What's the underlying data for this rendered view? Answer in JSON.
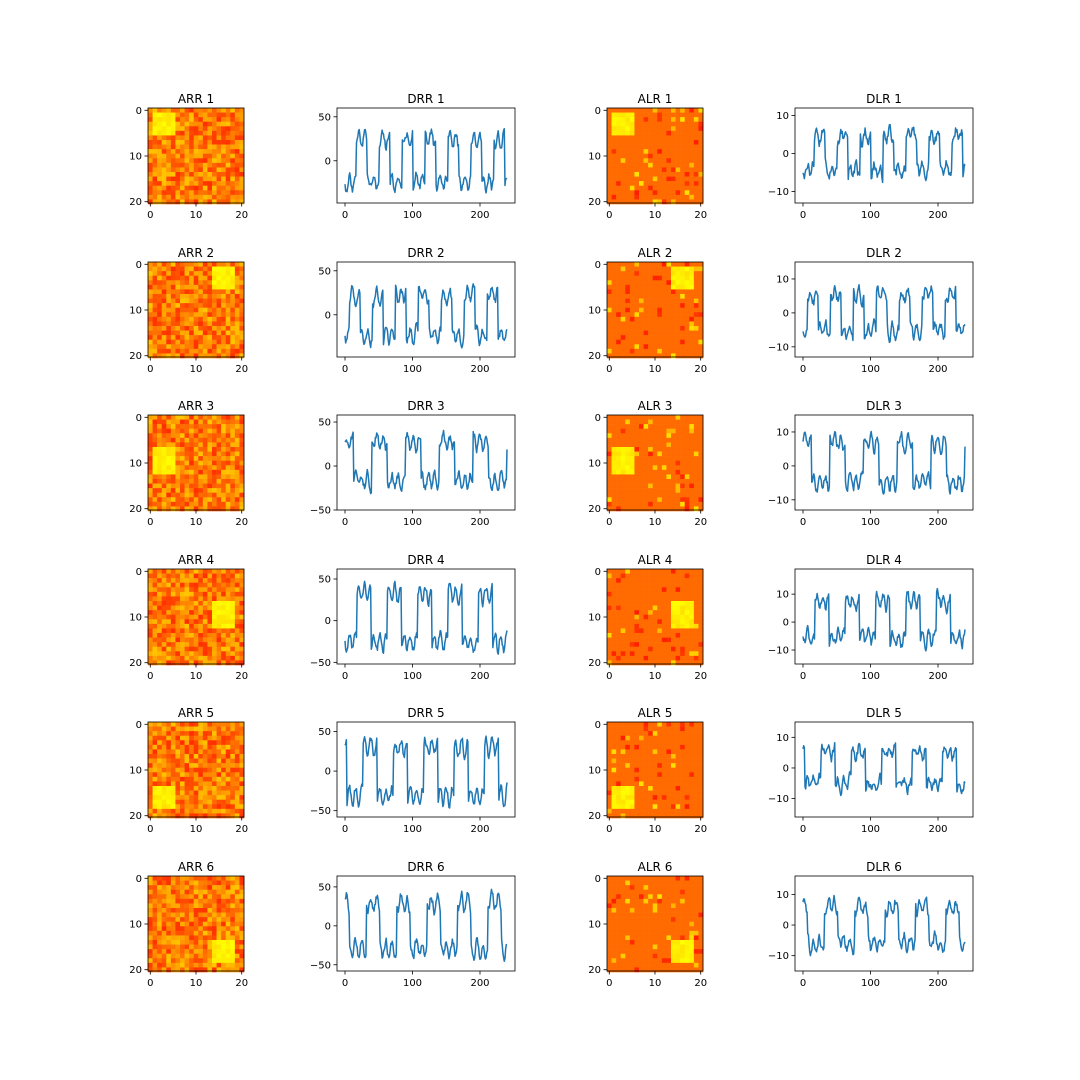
{
  "chart_data": [
    {
      "type": "heatmap",
      "title": "ARR 1",
      "cmap": "autumn",
      "grid_size": 21,
      "xlim": [
        0,
        20
      ],
      "ylim": [
        20,
        0
      ],
      "xticks": [
        "0",
        "10",
        "20"
      ],
      "yticks": [
        "0",
        "10",
        "20"
      ],
      "bright_block": {
        "rows": [
          1,
          5
        ],
        "cols": [
          1,
          5
        ]
      }
    },
    {
      "type": "line",
      "title": "DRR 1",
      "color": "#1f77b4",
      "xlim": [
        0,
        240
      ],
      "xticks": [
        "0",
        "100",
        "200"
      ],
      "yticks": [
        {
          "value": 50,
          "label": "50"
        },
        {
          "value": 0,
          "label": "0"
        }
      ],
      "ylim": [
        -48,
        60
      ],
      "period": 34,
      "amplitude": 32,
      "offset": 0,
      "noise": 9,
      "phase": 0.5
    },
    {
      "type": "heatmap",
      "title": "ALR 1",
      "cmap": "autumn",
      "grid_size": 21,
      "xlim": [
        0,
        20
      ],
      "ylim": [
        20,
        0
      ],
      "xticks": [
        "0",
        "10",
        "20"
      ],
      "yticks": [
        "0",
        "10",
        "20"
      ],
      "bright_block": {
        "rows": [
          1,
          5
        ],
        "cols": [
          1,
          5
        ]
      }
    },
    {
      "type": "line",
      "title": "DLR 1",
      "color": "#1f77b4",
      "xlim": [
        0,
        240
      ],
      "xticks": [
        "0",
        "100",
        "200"
      ],
      "yticks": [
        {
          "value": 10,
          "label": "10"
        },
        {
          "value": 0,
          "label": "0"
        },
        {
          "value": -10,
          "label": "−10"
        }
      ],
      "ylim": [
        -13,
        12
      ],
      "period": 34,
      "amplitude": 6,
      "offset": 0,
      "noise": 2.5,
      "phase": 0.5
    },
    {
      "type": "heatmap",
      "title": "ARR 2",
      "cmap": "autumn",
      "grid_size": 21,
      "xlim": [
        0,
        20
      ],
      "ylim": [
        20,
        0
      ],
      "xticks": [
        "0",
        "10",
        "20"
      ],
      "yticks": [
        "0",
        "10",
        "20"
      ],
      "bright_block": {
        "rows": [
          1,
          5
        ],
        "cols": [
          14,
          18
        ]
      }
    },
    {
      "type": "line",
      "title": "DRR 2",
      "color": "#1f77b4",
      "xlim": [
        0,
        240
      ],
      "xticks": [
        "0",
        "100",
        "200"
      ],
      "yticks": [
        {
          "value": 50,
          "label": "50"
        },
        {
          "value": 0,
          "label": "0"
        }
      ],
      "ylim": [
        -48,
        60
      ],
      "period": 34,
      "amplitude": 30,
      "offset": 0,
      "noise": 9,
      "phase": 2.8
    },
    {
      "type": "heatmap",
      "title": "ALR 2",
      "cmap": "autumn",
      "grid_size": 21,
      "xlim": [
        0,
        20
      ],
      "ylim": [
        20,
        0
      ],
      "xticks": [
        "0",
        "10",
        "20"
      ],
      "yticks": [
        "0",
        "10",
        "20"
      ],
      "bright_block": {
        "rows": [
          1,
          5
        ],
        "cols": [
          14,
          18
        ]
      }
    },
    {
      "type": "line",
      "title": "DLR 2",
      "color": "#1f77b4",
      "xlim": [
        0,
        240
      ],
      "xticks": [
        "0",
        "100",
        "200"
      ],
      "yticks": [
        {
          "value": 10,
          "label": "10"
        },
        {
          "value": 0,
          "label": "0"
        },
        {
          "value": -10,
          "label": "−10"
        }
      ],
      "ylim": [
        -13,
        15
      ],
      "period": 34,
      "amplitude": 7,
      "offset": 0,
      "noise": 2.5,
      "phase": 2.8
    },
    {
      "type": "heatmap",
      "title": "ARR 3",
      "cmap": "autumn",
      "grid_size": 21,
      "xlim": [
        0,
        20
      ],
      "ylim": [
        20,
        0
      ],
      "xticks": [
        "0",
        "10",
        "20"
      ],
      "yticks": [
        "0",
        "10",
        "20"
      ],
      "bright_block": {
        "rows": [
          7,
          12
        ],
        "cols": [
          1,
          5
        ]
      }
    },
    {
      "type": "line",
      "title": "DRR 3",
      "color": "#1f77b4",
      "xlim": [
        0,
        240
      ],
      "xticks": [
        "0",
        "100",
        "200"
      ],
      "yticks": [
        {
          "value": 50,
          "label": "50"
        },
        {
          "value": 0,
          "label": "0"
        },
        {
          "value": -50,
          "label": "−50"
        }
      ],
      "ylim": [
        -50,
        58
      ],
      "period": 50,
      "amplitude": 30,
      "offset": 5,
      "noise": 9,
      "phase": 0.2
    },
    {
      "type": "heatmap",
      "title": "ALR 3",
      "cmap": "autumn",
      "grid_size": 21,
      "xlim": [
        0,
        20
      ],
      "ylim": [
        20,
        0
      ],
      "xticks": [
        "0",
        "10",
        "20"
      ],
      "yticks": [
        "0",
        "10",
        "20"
      ],
      "bright_block": {
        "rows": [
          7,
          12
        ],
        "cols": [
          1,
          5
        ]
      }
    },
    {
      "type": "line",
      "title": "DLR 3",
      "color": "#1f77b4",
      "xlim": [
        0,
        240
      ],
      "xticks": [
        "0",
        "100",
        "200"
      ],
      "yticks": [
        {
          "value": 10,
          "label": "10"
        },
        {
          "value": 0,
          "label": "0"
        },
        {
          "value": -10,
          "label": "−10"
        }
      ],
      "ylim": [
        -13,
        15
      ],
      "period": 50,
      "amplitude": 8,
      "offset": 1,
      "noise": 2.5,
      "phase": 0.2
    },
    {
      "type": "heatmap",
      "title": "ARR 4",
      "cmap": "autumn",
      "grid_size": 21,
      "xlim": [
        0,
        20
      ],
      "ylim": [
        20,
        0
      ],
      "xticks": [
        "0",
        "10",
        "20"
      ],
      "yticks": [
        "0",
        "10",
        "20"
      ],
      "bright_block": {
        "rows": [
          7,
          12
        ],
        "cols": [
          14,
          18
        ]
      }
    },
    {
      "type": "line",
      "title": "DRR 4",
      "color": "#1f77b4",
      "xlim": [
        0,
        240
      ],
      "xticks": [
        "0",
        "100",
        "200"
      ],
      "yticks": [
        {
          "value": 50,
          "label": "50"
        },
        {
          "value": 0,
          "label": "0"
        },
        {
          "value": -50,
          "label": "−50"
        }
      ],
      "ylim": [
        -52,
        62
      ],
      "period": 45,
      "amplitude": 38,
      "offset": 3,
      "noise": 9,
      "phase": 0.6
    },
    {
      "type": "heatmap",
      "title": "ALR 4",
      "cmap": "autumn",
      "grid_size": 21,
      "xlim": [
        0,
        20
      ],
      "ylim": [
        20,
        0
      ],
      "xticks": [
        "0",
        "10",
        "20"
      ],
      "yticks": [
        "0",
        "10",
        "20"
      ],
      "bright_block": {
        "rows": [
          7,
          12
        ],
        "cols": [
          14,
          18
        ]
      }
    },
    {
      "type": "line",
      "title": "DLR 4",
      "color": "#1f77b4",
      "xlim": [
        0,
        240
      ],
      "xticks": [
        "0",
        "100",
        "200"
      ],
      "yticks": [
        {
          "value": 10,
          "label": "10"
        },
        {
          "value": 0,
          "label": "0"
        },
        {
          "value": -10,
          "label": "−10"
        }
      ],
      "ylim": [
        -15,
        19
      ],
      "period": 45,
      "amplitude": 9,
      "offset": 1,
      "noise": 3,
      "phase": 0.6
    },
    {
      "type": "heatmap",
      "title": "ARR 5",
      "cmap": "autumn",
      "grid_size": 21,
      "xlim": [
        0,
        20
      ],
      "ylim": [
        20,
        0
      ],
      "xticks": [
        "0",
        "10",
        "20"
      ],
      "yticks": [
        "0",
        "10",
        "20"
      ],
      "bright_block": {
        "rows": [
          14,
          18
        ],
        "cols": [
          1,
          5
        ]
      }
    },
    {
      "type": "line",
      "title": "DRR 5",
      "color": "#1f77b4",
      "xlim": [
        0,
        240
      ],
      "xticks": [
        "0",
        "100",
        "200"
      ],
      "yticks": [
        {
          "value": 50,
          "label": "50"
        },
        {
          "value": 0,
          "label": "0"
        },
        {
          "value": -50,
          "label": "−50"
        }
      ],
      "ylim": [
        -58,
        62
      ],
      "period": 45,
      "amplitude": 40,
      "offset": 0,
      "noise": 10,
      "phase": 0.4
    },
    {
      "type": "heatmap",
      "title": "ALR 5",
      "cmap": "autumn",
      "grid_size": 21,
      "xlim": [
        0,
        20
      ],
      "ylim": [
        20,
        0
      ],
      "xticks": [
        "0",
        "10",
        "20"
      ],
      "yticks": [
        "0",
        "10",
        "20"
      ],
      "bright_block": {
        "rows": [
          14,
          18
        ],
        "cols": [
          1,
          5
        ]
      }
    },
    {
      "type": "line",
      "title": "DLR 5",
      "color": "#1f77b4",
      "xlim": [
        0,
        240
      ],
      "xticks": [
        "0",
        "100",
        "200"
      ],
      "yticks": [
        {
          "value": 10,
          "label": "10"
        },
        {
          "value": 0,
          "label": "0"
        },
        {
          "value": -10,
          "label": "−10"
        }
      ],
      "ylim": [
        -16,
        15
      ],
      "period": 45,
      "amplitude": 7,
      "offset": 0,
      "noise": 2.8,
      "phase": 0.4
    },
    {
      "type": "heatmap",
      "title": "ARR 6",
      "cmap": "autumn",
      "grid_size": 21,
      "xlim": [
        0,
        20
      ],
      "ylim": [
        20,
        0
      ],
      "xticks": [
        "0",
        "10",
        "20"
      ],
      "yticks": [
        "0",
        "10",
        "20"
      ],
      "bright_block": {
        "rows": [
          14,
          18
        ],
        "cols": [
          14,
          18
        ]
      }
    },
    {
      "type": "line",
      "title": "DRR 6",
      "color": "#1f77b4",
      "xlim": [
        0,
        240
      ],
      "xticks": [
        "0",
        "100",
        "200"
      ],
      "yticks": [
        {
          "value": 50,
          "label": "50"
        },
        {
          "value": 0,
          "label": "0"
        },
        {
          "value": -50,
          "label": "−50"
        }
      ],
      "ylim": [
        -58,
        64
      ],
      "period": 45,
      "amplitude": 40,
      "offset": 0,
      "noise": 10,
      "phase": 0.3
    },
    {
      "type": "heatmap",
      "title": "ALR 6",
      "cmap": "autumn",
      "grid_size": 21,
      "xlim": [
        0,
        20
      ],
      "ylim": [
        20,
        0
      ],
      "xticks": [
        "0",
        "10",
        "20"
      ],
      "yticks": [
        "0",
        "10",
        "20"
      ],
      "bright_block": {
        "rows": [
          14,
          18
        ],
        "cols": [
          14,
          18
        ]
      }
    },
    {
      "type": "line",
      "title": "DLR 6",
      "color": "#1f77b4",
      "xlim": [
        0,
        240
      ],
      "xticks": [
        "0",
        "100",
        "200"
      ],
      "yticks": [
        {
          "value": 10,
          "label": "10"
        },
        {
          "value": 0,
          "label": "0"
        },
        {
          "value": -10,
          "label": "−10"
        }
      ],
      "ylim": [
        -15,
        16
      ],
      "period": 45,
      "amplitude": 8,
      "offset": 0,
      "noise": 3,
      "phase": 0.3
    }
  ]
}
